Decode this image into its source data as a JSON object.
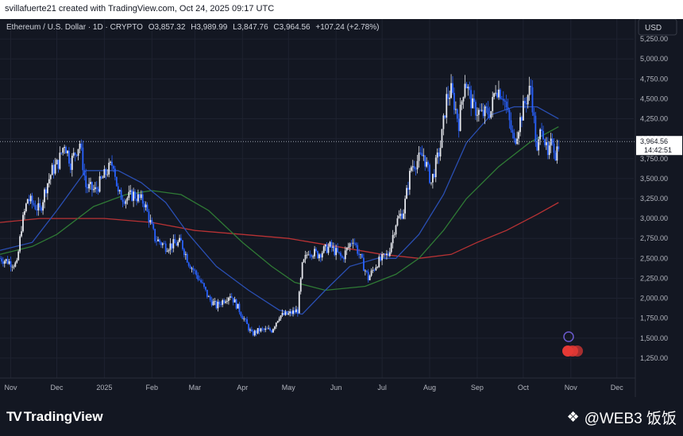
{
  "header": {
    "credit": "svillafuerte21 created with TradingView.com, Oct 24, 2025 09:17 UTC"
  },
  "footer": {
    "brand": "TradingView",
    "watermark": "@WEB3 饭饭"
  },
  "legend": {
    "symbol": "Ethereum / U.S. Dollar · 1D · CRYPTO",
    "open_label": "O",
    "open": "3,857.32",
    "high_label": "H",
    "high": "3,989.99",
    "low_label": "L",
    "low": "3,847.76",
    "close_label": "C",
    "close": "3,964.56",
    "change": "+107.24 (+2.78%)"
  },
  "colors": {
    "bg": "#131722",
    "candle": "#2962ff",
    "candle_up": "#e6e8ee",
    "ma_short": "#2a4fb3",
    "ma_mid": "#2f7a35",
    "ma_long": "#b83234",
    "grid": "#1e2230"
  },
  "chart_data": {
    "type": "candlestick",
    "currency": "USD",
    "ylim": [
      1000,
      5500
    ],
    "y_ticks": [
      5250,
      5000,
      4750,
      4500,
      4250,
      4000,
      3750,
      3500,
      3250,
      3000,
      2750,
      2500,
      2250,
      2000,
      1750,
      1500,
      1250
    ],
    "y_tick_labels": [
      "5,250.00",
      "5,000.00",
      "4,750.00",
      "4,500.00",
      "4,250.00",
      "4,000.00",
      "3,750.00",
      "3,500.00",
      "3,250.00",
      "3,000.00",
      "2,750.00",
      "2,500.00",
      "2,250.00",
      "2,000.00",
      "1,750.00",
      "1,500.00",
      "1,250.00"
    ],
    "x_labels": [
      "Nov",
      "Dec",
      "2025",
      "Feb",
      "Mar",
      "Apr",
      "May",
      "Jun",
      "Jul",
      "Aug",
      "Sep",
      "Oct",
      "Nov",
      "Dec"
    ],
    "x_start": "2024-10-25",
    "x_end": "2025-12-12",
    "x_label_dates": [
      "2024-11-01",
      "2024-12-01",
      "2025-01-01",
      "2025-02-01",
      "2025-03-01",
      "2025-04-01",
      "2025-05-01",
      "2025-06-01",
      "2025-07-01",
      "2025-08-01",
      "2025-09-01",
      "2025-10-01",
      "2025-11-01",
      "2025-12-01"
    ],
    "last_price": {
      "value": 3964.56,
      "label": "3,964.56",
      "countdown": "14:42:51"
    },
    "price_path": [
      [
        "2024-10-25",
        2500
      ],
      [
        "2024-11-05",
        2420
      ],
      [
        "2024-11-08",
        2900
      ],
      [
        "2024-11-12",
        3250
      ],
      [
        "2024-11-20",
        3100
      ],
      [
        "2024-11-24",
        3400
      ],
      [
        "2024-11-28",
        3600
      ],
      [
        "2024-12-02",
        3700
      ],
      [
        "2024-12-06",
        3950
      ],
      [
        "2024-12-10",
        3700
      ],
      [
        "2024-12-16",
        3950
      ],
      [
        "2024-12-20",
        3400
      ],
      [
        "2024-12-26",
        3350
      ],
      [
        "2025-01-03",
        3600
      ],
      [
        "2025-01-07",
        3700
      ],
      [
        "2025-01-10",
        3300
      ],
      [
        "2025-01-15",
        3250
      ],
      [
        "2025-01-20",
        3300
      ],
      [
        "2025-01-27",
        3200
      ],
      [
        "2025-02-03",
        2750
      ],
      [
        "2025-02-10",
        2650
      ],
      [
        "2025-02-20",
        2700
      ],
      [
        "2025-02-25",
        2450
      ],
      [
        "2025-03-05",
        2200
      ],
      [
        "2025-03-10",
        2000
      ],
      [
        "2025-03-15",
        1900
      ],
      [
        "2025-03-24",
        2050
      ],
      [
        "2025-03-30",
        1850
      ],
      [
        "2025-04-07",
        1550
      ],
      [
        "2025-04-12",
        1600
      ],
      [
        "2025-04-20",
        1600
      ],
      [
        "2025-04-25",
        1780
      ],
      [
        "2025-05-01",
        1800
      ],
      [
        "2025-05-07",
        1850
      ],
      [
        "2025-05-10",
        2400
      ],
      [
        "2025-05-14",
        2600
      ],
      [
        "2025-05-20",
        2550
      ],
      [
        "2025-05-28",
        2650
      ],
      [
        "2025-06-05",
        2500
      ],
      [
        "2025-06-12",
        2750
      ],
      [
        "2025-06-17",
        2500
      ],
      [
        "2025-06-22",
        2250
      ],
      [
        "2025-06-28",
        2450
      ],
      [
        "2025-07-05",
        2550
      ],
      [
        "2025-07-10",
        2950
      ],
      [
        "2025-07-15",
        3100
      ],
      [
        "2025-07-20",
        3650
      ],
      [
        "2025-07-28",
        3800
      ],
      [
        "2025-08-02",
        3450
      ],
      [
        "2025-08-08",
        3900
      ],
      [
        "2025-08-12",
        4500
      ],
      [
        "2025-08-15",
        4600
      ],
      [
        "2025-08-20",
        4200
      ],
      [
        "2025-08-24",
        4750
      ],
      [
        "2025-08-29",
        4400
      ],
      [
        "2025-09-04",
        4300
      ],
      [
        "2025-09-10",
        4350
      ],
      [
        "2025-09-13",
        4650
      ],
      [
        "2025-09-18",
        4550
      ],
      [
        "2025-09-22",
        4200
      ],
      [
        "2025-09-25",
        3950
      ],
      [
        "2025-10-02",
        4450
      ],
      [
        "2025-10-06",
        4650
      ],
      [
        "2025-10-10",
        3800
      ],
      [
        "2025-10-13",
        4200
      ],
      [
        "2025-10-17",
        3750
      ],
      [
        "2025-10-20",
        4000
      ],
      [
        "2025-10-22",
        3800
      ],
      [
        "2025-10-24",
        3964
      ]
    ],
    "ma_short": [
      [
        "2024-10-25",
        2600
      ],
      [
        "2024-11-15",
        2700
      ],
      [
        "2024-12-01",
        3100
      ],
      [
        "2024-12-20",
        3600
      ],
      [
        "2025-01-10",
        3600
      ],
      [
        "2025-01-25",
        3450
      ],
      [
        "2025-02-10",
        3200
      ],
      [
        "2025-02-25",
        2800
      ],
      [
        "2025-03-15",
        2400
      ],
      [
        "2025-04-05",
        2100
      ],
      [
        "2025-04-25",
        1850
      ],
      [
        "2025-05-10",
        1800
      ],
      [
        "2025-05-25",
        2100
      ],
      [
        "2025-06-10",
        2400
      ],
      [
        "2025-06-28",
        2500
      ],
      [
        "2025-07-10",
        2500
      ],
      [
        "2025-07-25",
        2800
      ],
      [
        "2025-08-10",
        3300
      ],
      [
        "2025-08-25",
        3950
      ],
      [
        "2025-09-10",
        4300
      ],
      [
        "2025-09-25",
        4400
      ],
      [
        "2025-10-10",
        4400
      ],
      [
        "2025-10-24",
        4250
      ]
    ],
    "ma_mid": [
      [
        "2024-10-25",
        2550
      ],
      [
        "2024-11-15",
        2650
      ],
      [
        "2024-12-01",
        2800
      ],
      [
        "2024-12-25",
        3150
      ],
      [
        "2025-01-15",
        3300
      ],
      [
        "2025-02-01",
        3350
      ],
      [
        "2025-02-20",
        3300
      ],
      [
        "2025-03-10",
        3100
      ],
      [
        "2025-04-01",
        2700
      ],
      [
        "2025-04-20",
        2400
      ],
      [
        "2025-05-05",
        2200
      ],
      [
        "2025-05-25",
        2100
      ],
      [
        "2025-06-20",
        2150
      ],
      [
        "2025-07-10",
        2300
      ],
      [
        "2025-07-25",
        2500
      ],
      [
        "2025-08-10",
        2850
      ],
      [
        "2025-08-25",
        3250
      ],
      [
        "2025-09-15",
        3650
      ],
      [
        "2025-10-05",
        3950
      ],
      [
        "2025-10-24",
        4150
      ]
    ],
    "ma_long": [
      [
        "2024-10-25",
        2950
      ],
      [
        "2024-11-20",
        3000
      ],
      [
        "2025-01-01",
        3000
      ],
      [
        "2025-02-01",
        2950
      ],
      [
        "2025-03-01",
        2850
      ],
      [
        "2025-04-01",
        2800
      ],
      [
        "2025-05-01",
        2750
      ],
      [
        "2025-06-01",
        2650
      ],
      [
        "2025-07-01",
        2550
      ],
      [
        "2025-07-25",
        2500
      ],
      [
        "2025-08-15",
        2550
      ],
      [
        "2025-09-01",
        2700
      ],
      [
        "2025-09-20",
        2850
      ],
      [
        "2025-10-10",
        3050
      ],
      [
        "2025-10-24",
        3200
      ]
    ]
  }
}
